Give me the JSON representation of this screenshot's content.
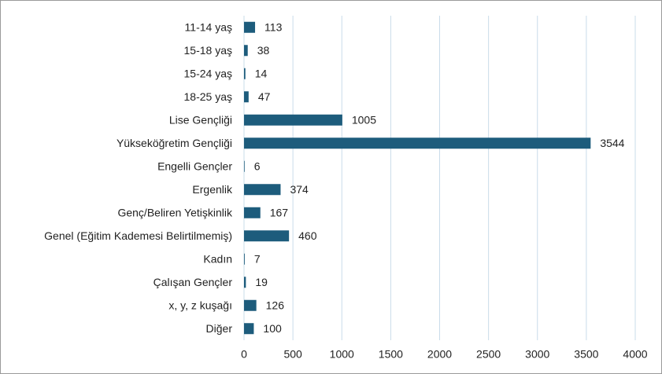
{
  "chart_data": {
    "type": "barh",
    "categories": [
      "11-14 yaş",
      "15-18 yaş",
      "15-24 yaş",
      "18-25 yaş",
      "Lise Gençliği",
      "Yükseköğretim Gençliği",
      "Engelli Gençler",
      "Ergenlik",
      "Genç/Beliren Yetişkinlik",
      "Genel (Eğitim Kademesi Belirtilmemiş)",
      "Kadın",
      "Çalışan Gençler",
      "x, y, z kuşağı",
      "Diğer"
    ],
    "values": [
      113,
      38,
      14,
      47,
      1005,
      3544,
      6,
      374,
      167,
      460,
      7,
      19,
      126,
      100
    ],
    "color": "#1d5c7c",
    "xlim": [
      0,
      4000
    ],
    "xticks": [
      0,
      500,
      1000,
      1500,
      2000,
      2500,
      3000,
      3500,
      4000
    ],
    "grid": true
  }
}
